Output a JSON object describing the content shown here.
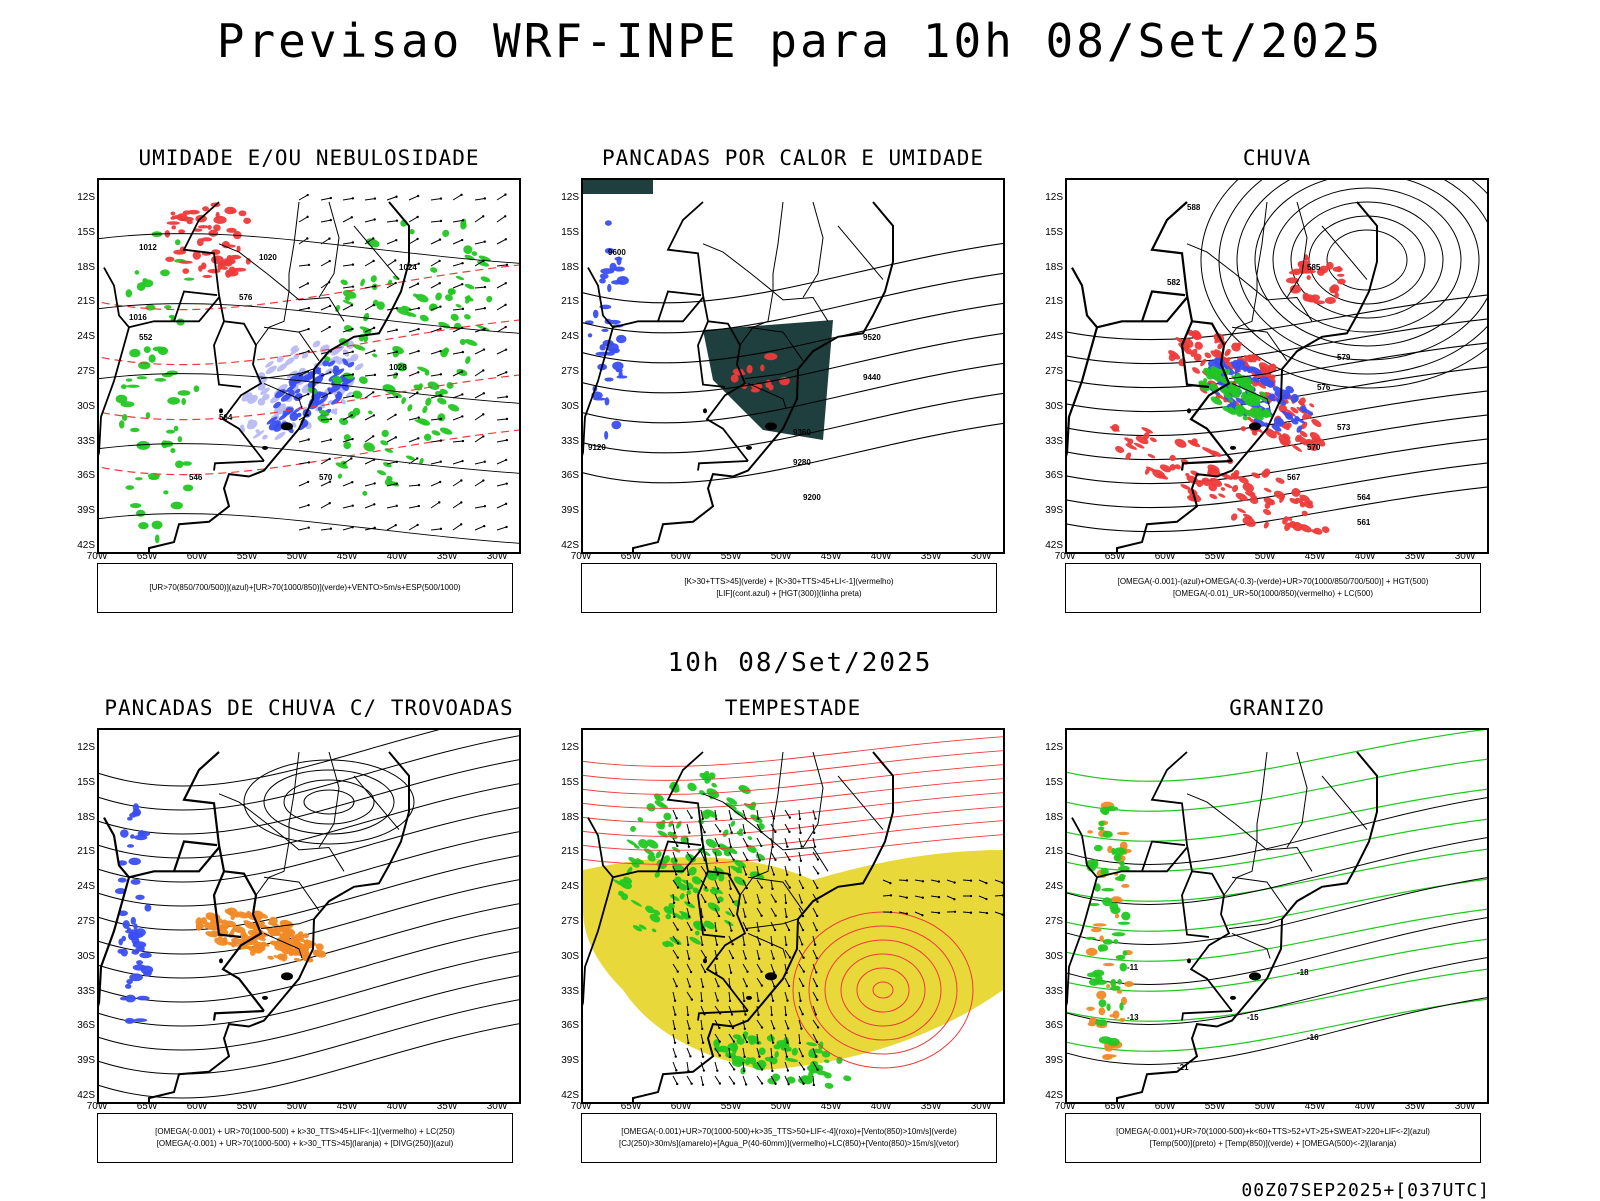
{
  "header": {
    "title": "Previsao WRF-INPE  para 10h 08/Set/2025"
  },
  "middle_title": "10h 08/Set/2025",
  "footer": "00Z07SEP2025+[037UTC]",
  "axes": {
    "lat_labels": [
      "12S",
      "15S",
      "18S",
      "21S",
      "24S",
      "27S",
      "30S",
      "33S",
      "36S",
      "39S",
      "42S"
    ],
    "lon_labels": [
      "70W",
      "65W",
      "60W",
      "55W",
      "50W",
      "45W",
      "40W",
      "35W",
      "30W"
    ]
  },
  "colors": {
    "green": "#22c722",
    "blue": "#3a4ef0",
    "light_blue": "#b7b9f3",
    "red": "#ee3a3a",
    "dark_teal": "#1f3f3f",
    "orange": "#f08a26",
    "yellow": "#e9d83a"
  },
  "panels": [
    {
      "title": "UMIDADE E/OU NEBULOSIDADE",
      "legend": [
        "[UR>70(850/700/500)](azul)+[UR>70(1000/850)](verde)+VENTO>5m/s+ESP(500/1000)"
      ],
      "contour_labels": [
        "1012",
        "1016",
        "1020",
        "1024",
        "1028",
        "576",
        "564",
        "552",
        "546",
        "570"
      ]
    },
    {
      "title": "PANCADAS POR CALOR E UMIDADE",
      "legend": [
        "[K>30+TTS>45](verde) + [K>30+TTS>45+LI<-1](vermelho)",
        "[LIF](cont.azul) + [HGT(300)](linha preta)"
      ],
      "contour_labels": [
        "9600",
        "9520",
        "9440",
        "9360",
        "9280",
        "9200",
        "9120"
      ]
    },
    {
      "title": "CHUVA",
      "legend": [
        "[OMEGA(-0.001)-(azul)+OMEGA(-0.3)-(verde)+UR>70(1000/850/700/500)] + HGT(500)",
        "[OMEGA(-0.01)_UR>50(1000/850)(vermelho) + LC(500)"
      ],
      "contour_labels": [
        "588",
        "585",
        "582",
        "579",
        "576",
        "573",
        "570",
        "567",
        "564",
        "561"
      ]
    },
    {
      "title": "PANCADAS DE CHUVA C/ TROVOADAS",
      "legend": [
        "[OMEGA(-0.001) + UR>70(1000-500) + k>30_TTS>45+LIF<-1](vermelho) + LC(250)",
        "[OMEGA(-0.001) + UR>70(1000-500) + k>30_TTS>45](laranja) + [DIVG(250)](azul)"
      ],
      "contour_labels": []
    },
    {
      "title": "TEMPESTADE",
      "legend": [
        "[OMEGA(-0.001)+UR>70(1000-500)+k>35_TTS>50+LIF<-4](roxo)+[Vento(850)>10m/s](verde)",
        "[CJ(250)>30m/s](amarelo)+[Agua_P(40-60mm)](vermelho)+LC(850)+[Vento(850)>15m/s](vetor)"
      ],
      "contour_labels": []
    },
    {
      "title": "GRANIZO",
      "legend": [
        "[OMEGA(-0.001)+UR>70(1000-500)+k<60+TTS>52+VT>25+SWEAT>220+LIF<-2](azul)",
        "[Temp(500)](preto) + [Temp(850)](verde) + [OMEGA(500)<-2](laranja)"
      ],
      "contour_labels": [
        "-11",
        "-13",
        "-15",
        "-16",
        "-18",
        "-21"
      ]
    }
  ]
}
